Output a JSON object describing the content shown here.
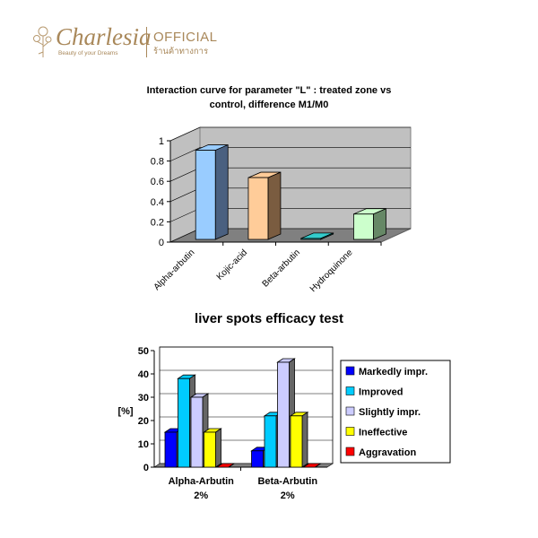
{
  "header": {
    "brand": "Charlesia",
    "tagline": "Beauty of your Dreams",
    "official": "OFFICIAL",
    "thai": "ร้านค้าทางการ"
  },
  "chart_data": [
    {
      "type": "bar",
      "title": "Interaction curve for parameter \"L\" : treated zone vs",
      "title2": "control, difference M1/M0",
      "categories": [
        "Alpha-arbutin",
        "Kojic-acid",
        "Beta-arbutin",
        "Hydroquinone"
      ],
      "values": [
        0.88,
        0.61,
        0.01,
        0.25
      ],
      "colors": [
        "#99ccff",
        "#ffcc99",
        "#33cccc",
        "#ccffcc"
      ],
      "side_colors": [
        "#4a6080",
        "#7a5c40",
        "#1a8080",
        "#668866"
      ],
      "ylim": [
        0,
        1
      ],
      "yticks": [
        "0",
        "0.2",
        "0.4",
        "0.6",
        "0.8",
        "1"
      ],
      "grid": true
    },
    {
      "type": "bar",
      "title": "liver spots efficacy test",
      "ylabel": "[%]",
      "categories": [
        [
          "Alpha-Arbutin",
          "2%"
        ],
        [
          "Beta-Arbutin",
          "2%"
        ]
      ],
      "series": [
        {
          "name": "Markedly impr.",
          "color": "#0000ff",
          "values": [
            15,
            7
          ]
        },
        {
          "name": "Improved",
          "color": "#00ccff",
          "values": [
            38,
            22
          ]
        },
        {
          "name": "Slightly impr.",
          "color": "#ccccff",
          "values": [
            30,
            45
          ]
        },
        {
          "name": "Ineffective",
          "color": "#ffff00",
          "values": [
            15,
            22
          ]
        },
        {
          "name": "Aggravation",
          "color": "#ff0000",
          "values": [
            0,
            0
          ]
        }
      ],
      "ylim": [
        0,
        50
      ],
      "yticks": [
        "0",
        "10",
        "20",
        "30",
        "40",
        "50"
      ],
      "legend": "right",
      "grid": true
    }
  ]
}
